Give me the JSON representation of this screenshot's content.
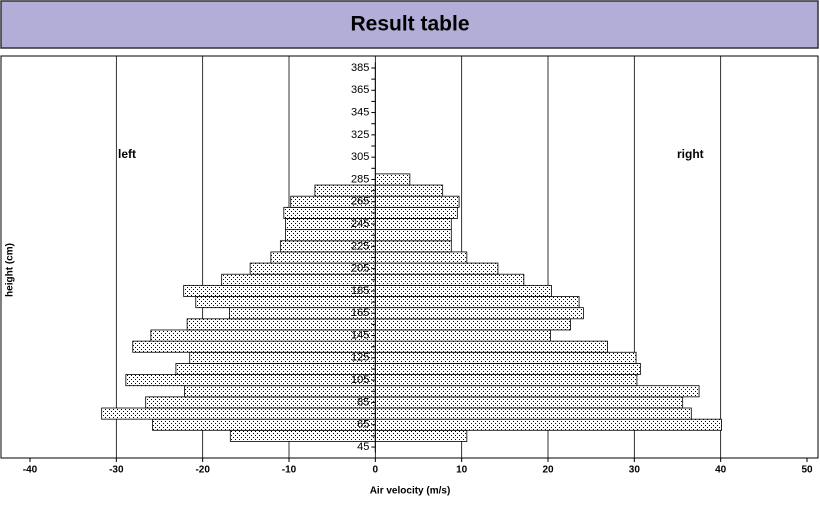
{
  "chart_data": {
    "type": "butterfly-bar",
    "title": "Result table",
    "x_label": "Air velocity (m/s)",
    "y_label": "height (cm)",
    "categories": [
      45,
      null,
      65,
      null,
      85,
      null,
      105,
      null,
      125,
      null,
      145,
      null,
      165,
      null,
      185,
      null,
      205,
      null,
      225,
      null,
      245,
      null,
      265,
      null,
      285,
      null,
      305,
      null,
      325,
      null,
      345,
      null,
      365,
      null,
      385
    ],
    "series": [
      {
        "name": "left",
        "color": "#000000",
        "values": [
          null,
          -16.8,
          -25.8,
          -31.7,
          -26.6,
          -22.1,
          -28.9,
          -23.1,
          -21.5,
          -28.1,
          -26.0,
          -21.8,
          -16.9,
          -20.8,
          -22.2,
          -17.8,
          -14.5,
          -12.1,
          -11.0,
          -10.4,
          -10.4,
          -10.6,
          -9.8,
          -7.0,
          null,
          null,
          null,
          null,
          null,
          null,
          null,
          null,
          null,
          null,
          null
        ]
      },
      {
        "name": "right",
        "color": "#000000",
        "values": [
          null,
          10.6,
          40.1,
          36.6,
          35.6,
          37.5,
          30.3,
          30.7,
          30.2,
          26.9,
          20.3,
          22.6,
          24.1,
          23.6,
          20.4,
          17.2,
          14.2,
          10.6,
          8.8,
          8.8,
          8.8,
          9.5,
          9.7,
          7.8,
          4.0,
          null,
          null,
          null,
          null,
          null,
          null,
          null,
          null,
          null,
          null
        ]
      }
    ],
    "xlim": [
      -40,
      50
    ],
    "xticks": [
      -40,
      -30,
      -20,
      -10,
      0,
      10,
      20,
      30,
      40,
      50
    ],
    "grid": true
  }
}
